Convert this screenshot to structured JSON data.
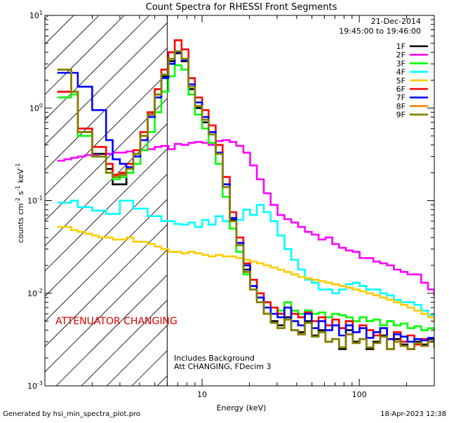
{
  "chart_data": {
    "type": "line",
    "title": "Count Spectra for RHESSI Front Segments",
    "xlabel": "Energy (keV)",
    "ylabel_parts": [
      "counts cm",
      "-2",
      " s",
      "-1",
      " keV",
      "-1"
    ],
    "x_scale": "log",
    "y_scale": "log",
    "xlim": [
      1,
      300
    ],
    "ylim": [
      0.001,
      10
    ],
    "x_ticks": [
      {
        "value": 10,
        "label": "10"
      },
      {
        "value": 100,
        "label": "100"
      }
    ],
    "y_ticks": [
      {
        "value": 10,
        "base": "10",
        "exp": "1"
      },
      {
        "value": 1,
        "base": "10",
        "exp": "0"
      },
      {
        "value": 0.1,
        "base": "10",
        "exp": "-1"
      },
      {
        "value": 0.01,
        "base": "10",
        "exp": "-2"
      },
      {
        "value": 0.001,
        "base": "10",
        "exp": "-3"
      }
    ],
    "header": {
      "date": "21-Dec-2014",
      "time_range": "19:45:00 to 19:46:00"
    },
    "attenuator_boundary_kev": 6,
    "attenuator_label": "ATTENUATOR CHANGING",
    "annotations": [
      "Includes Background",
      "Att CHANGING, FDecim 3"
    ],
    "x_grid": [
      1.2,
      1.33,
      1.47,
      1.62,
      1.8,
      2.0,
      2.2,
      2.45,
      2.7,
      3.0,
      3.3,
      3.65,
      4.05,
      4.5,
      5.0,
      5.5,
      6.1,
      6.7,
      7.4,
      8.2,
      9.0,
      10.0,
      11.0,
      12.2,
      13.5,
      15.0,
      16.5,
      18.3,
      20.2,
      22.3,
      24.7,
      27.3,
      30.2,
      33.4,
      36.9,
      40.8,
      45.1,
      49.8,
      55.1,
      60.9,
      67.3,
      74.4,
      82.2,
      90.9,
      100.5,
      111.1,
      122.8,
      135.8,
      150.1,
      165.9,
      183.4,
      202.7,
      224.1,
      247.7,
      273.8,
      300.0
    ],
    "series": [
      {
        "name": "1F",
        "color": "#000000",
        "values": [
          1.5,
          1.5,
          1.5,
          0.55,
          0.55,
          0.32,
          0.32,
          0.22,
          0.15,
          0.15,
          0.22,
          0.32,
          0.5,
          0.85,
          1.4,
          2.2,
          3.2,
          3.9,
          3.2,
          1.6,
          1.0,
          0.7,
          0.52,
          0.32,
          0.15,
          0.062,
          0.035,
          0.018,
          0.012,
          0.009,
          0.006,
          0.005,
          0.0045,
          0.0055,
          0.004,
          0.0038,
          0.005,
          0.0035,
          0.004,
          0.003,
          0.0032,
          0.0025,
          0.004,
          0.003,
          0.0032,
          0.0025,
          0.003,
          0.0035,
          0.0025,
          0.0032,
          0.0028,
          0.0025,
          0.003,
          0.0028,
          0.0032,
          0.0026
        ]
      },
      {
        "name": "2F",
        "color": "#ff00ff",
        "values": [
          0.27,
          0.28,
          0.29,
          0.3,
          0.31,
          0.31,
          0.3,
          0.32,
          0.33,
          0.33,
          0.34,
          0.35,
          0.35,
          0.36,
          0.38,
          0.39,
          0.36,
          0.41,
          0.4,
          0.42,
          0.43,
          0.42,
          0.4,
          0.44,
          0.45,
          0.43,
          0.39,
          0.33,
          0.24,
          0.17,
          0.12,
          0.09,
          0.07,
          0.063,
          0.058,
          0.052,
          0.046,
          0.043,
          0.038,
          0.04,
          0.034,
          0.031,
          0.029,
          0.028,
          0.024,
          0.024,
          0.022,
          0.021,
          0.02,
          0.018,
          0.017,
          0.016,
          0.016,
          0.013,
          0.011,
          0.0095
        ]
      },
      {
        "name": "3F",
        "color": "#00ff00",
        "values": [
          1.3,
          1.3,
          1.4,
          0.5,
          0.5,
          0.3,
          0.3,
          0.2,
          0.17,
          0.18,
          0.2,
          0.25,
          0.35,
          0.55,
          0.9,
          1.5,
          2.2,
          2.9,
          2.6,
          1.4,
          0.85,
          0.6,
          0.42,
          0.25,
          0.11,
          0.05,
          0.028,
          0.016,
          0.011,
          0.009,
          0.008,
          0.007,
          0.0065,
          0.008,
          0.0065,
          0.006,
          0.0065,
          0.006,
          0.0062,
          0.0055,
          0.006,
          0.0058,
          0.0055,
          0.005,
          0.0055,
          0.005,
          0.0052,
          0.0045,
          0.005,
          0.0045,
          0.0047,
          0.0042,
          0.0044,
          0.004,
          0.0042,
          0.004
        ]
      },
      {
        "name": "4F",
        "color": "#00ffff",
        "values": [
          0.095,
          0.095,
          0.1,
          0.085,
          0.085,
          0.078,
          0.078,
          0.072,
          0.072,
          0.1,
          0.1,
          0.082,
          0.082,
          0.068,
          0.068,
          0.06,
          0.06,
          0.056,
          0.055,
          0.058,
          0.052,
          0.062,
          0.055,
          0.068,
          0.06,
          0.065,
          0.062,
          0.08,
          0.07,
          0.09,
          0.075,
          0.06,
          0.042,
          0.03,
          0.023,
          0.018,
          0.014,
          0.013,
          0.011,
          0.011,
          0.01,
          0.011,
          0.0125,
          0.013,
          0.012,
          0.011,
          0.011,
          0.01,
          0.0095,
          0.0085,
          0.008,
          0.008,
          0.0075,
          0.0065,
          0.0058,
          0.005
        ]
      },
      {
        "name": "5F",
        "color": "#ffcc00",
        "values": [
          0.052,
          0.052,
          0.048,
          0.046,
          0.044,
          0.042,
          0.04,
          0.04,
          0.038,
          0.038,
          0.04,
          0.036,
          0.036,
          0.034,
          0.032,
          0.03,
          0.028,
          0.028,
          0.027,
          0.028,
          0.027,
          0.026,
          0.025,
          0.026,
          0.025,
          0.025,
          0.024,
          0.023,
          0.022,
          0.021,
          0.02,
          0.019,
          0.018,
          0.017,
          0.016,
          0.015,
          0.0145,
          0.014,
          0.0135,
          0.013,
          0.0125,
          0.012,
          0.0115,
          0.011,
          0.0105,
          0.01,
          0.0095,
          0.009,
          0.0085,
          0.008,
          0.0075,
          0.007,
          0.0065,
          0.006,
          0.0055,
          0.005
        ]
      },
      {
        "name": "6F",
        "color": "#ff0000",
        "values": [
          1.5,
          1.5,
          1.5,
          0.6,
          0.6,
          0.38,
          0.38,
          0.25,
          0.19,
          0.2,
          0.25,
          0.35,
          0.55,
          0.9,
          1.6,
          2.6,
          4.0,
          5.4,
          4.3,
          2.1,
          1.3,
          0.95,
          0.65,
          0.4,
          0.18,
          0.075,
          0.04,
          0.021,
          0.014,
          0.01,
          0.008,
          0.007,
          0.006,
          0.007,
          0.006,
          0.0055,
          0.0062,
          0.005,
          0.0055,
          0.0045,
          0.0052,
          0.0042,
          0.005,
          0.0038,
          0.0045,
          0.004,
          0.0035,
          0.0042,
          0.0032,
          0.0038,
          0.003,
          0.0035,
          0.0028,
          0.0032,
          0.003,
          0.0028
        ]
      },
      {
        "name": "7F",
        "color": "#0000ff",
        "values": [
          2.4,
          2.4,
          2.4,
          1.7,
          1.7,
          0.95,
          0.95,
          0.45,
          0.28,
          0.25,
          0.23,
          0.3,
          0.45,
          0.8,
          1.3,
          2.1,
          3.0,
          4.0,
          3.3,
          1.8,
          1.15,
          0.8,
          0.55,
          0.33,
          0.15,
          0.065,
          0.035,
          0.02,
          0.012,
          0.009,
          0.007,
          0.006,
          0.0055,
          0.007,
          0.005,
          0.0045,
          0.006,
          0.0042,
          0.005,
          0.004,
          0.0045,
          0.0035,
          0.0045,
          0.0038,
          0.0042,
          0.0033,
          0.0038,
          0.0042,
          0.0032,
          0.0036,
          0.0034,
          0.003,
          0.0032,
          0.0031,
          0.0033,
          0.003
        ]
      },
      {
        "name": "8F",
        "color": "#ff8000",
        "values": [
          2.6,
          2.6,
          1.5,
          0.55,
          0.55,
          0.3,
          0.3,
          0.2,
          0.18,
          0.19,
          0.22,
          0.32,
          0.5,
          0.85,
          1.4,
          2.3,
          3.4,
          4.1,
          3.4,
          1.7,
          1.05,
          0.75,
          0.52,
          0.32,
          0.14,
          0.06,
          0.033,
          0.017,
          0.011,
          0.008,
          0.006,
          0.0048,
          0.0042,
          0.0052,
          0.004,
          0.0036,
          0.0048,
          0.0034,
          0.0038,
          0.003,
          0.0032,
          0.0026,
          0.0036,
          0.0029,
          0.0032,
          0.0026,
          0.0029,
          0.0034,
          0.0025,
          0.003,
          0.0027,
          0.0025,
          0.0029,
          0.0027,
          0.003,
          0.0026
        ]
      },
      {
        "name": "9F",
        "color": "#808000",
        "values": [
          2.6,
          2.6,
          1.5,
          0.55,
          0.55,
          0.3,
          0.3,
          0.2,
          0.18,
          0.19,
          0.22,
          0.32,
          0.5,
          0.85,
          1.4,
          2.3,
          3.4,
          4.1,
          3.4,
          1.7,
          1.05,
          0.75,
          0.52,
          0.32,
          0.14,
          0.06,
          0.033,
          0.017,
          0.011,
          0.008,
          0.006,
          0.0048,
          0.0042,
          0.0052,
          0.004,
          0.0036,
          0.0048,
          0.0034,
          0.0038,
          0.003,
          0.0032,
          0.0026,
          0.0036,
          0.0029,
          0.0032,
          0.0026,
          0.0029,
          0.0034,
          0.0025,
          0.003,
          0.0027,
          0.0025,
          0.0029,
          0.0027,
          0.003,
          0.0026
        ]
      }
    ]
  },
  "footer": {
    "generated_by": "Generated by hsi_min_spectra_plot.pro",
    "timestamp": "18-Apr-2023 12:38"
  }
}
